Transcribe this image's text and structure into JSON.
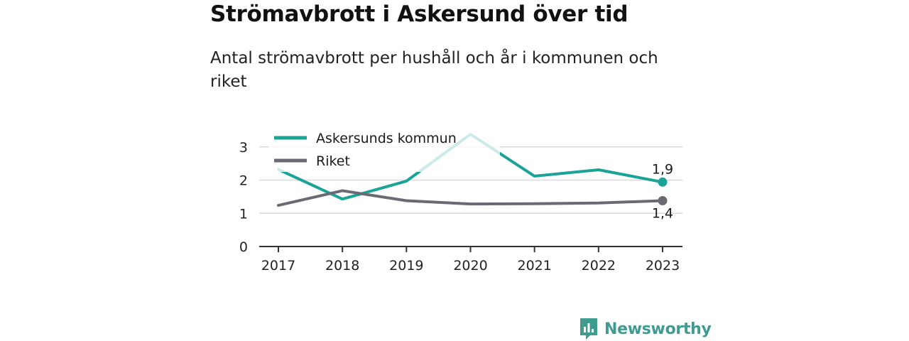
{
  "title": "Strömavbrott i Askersund över tid",
  "subtitle": "Antal strömavbrott per hushåll och år i kommunen och riket",
  "brand": {
    "name": "Newsworthy",
    "color": "#3f9b8f"
  },
  "chart_data": {
    "type": "line",
    "title": "",
    "xlabel": "",
    "ylabel": "",
    "x": [
      "2017",
      "2018",
      "2019",
      "2020",
      "2021",
      "2022",
      "2023"
    ],
    "yticks": [
      "0",
      "1",
      "2",
      "3"
    ],
    "ylim": [
      0,
      3.4
    ],
    "grid": true,
    "legend": "top-left",
    "series": [
      {
        "name": "Askersunds kommun",
        "color": "#1aa396",
        "values": [
          2.32,
          1.43,
          1.97,
          3.38,
          2.12,
          2.31,
          1.94
        ],
        "end_label": "1,9"
      },
      {
        "name": "Riket",
        "color": "#6b6a72",
        "values": [
          1.24,
          1.68,
          1.38,
          1.28,
          1.29,
          1.31,
          1.38
        ],
        "end_label": "1,4"
      }
    ]
  }
}
